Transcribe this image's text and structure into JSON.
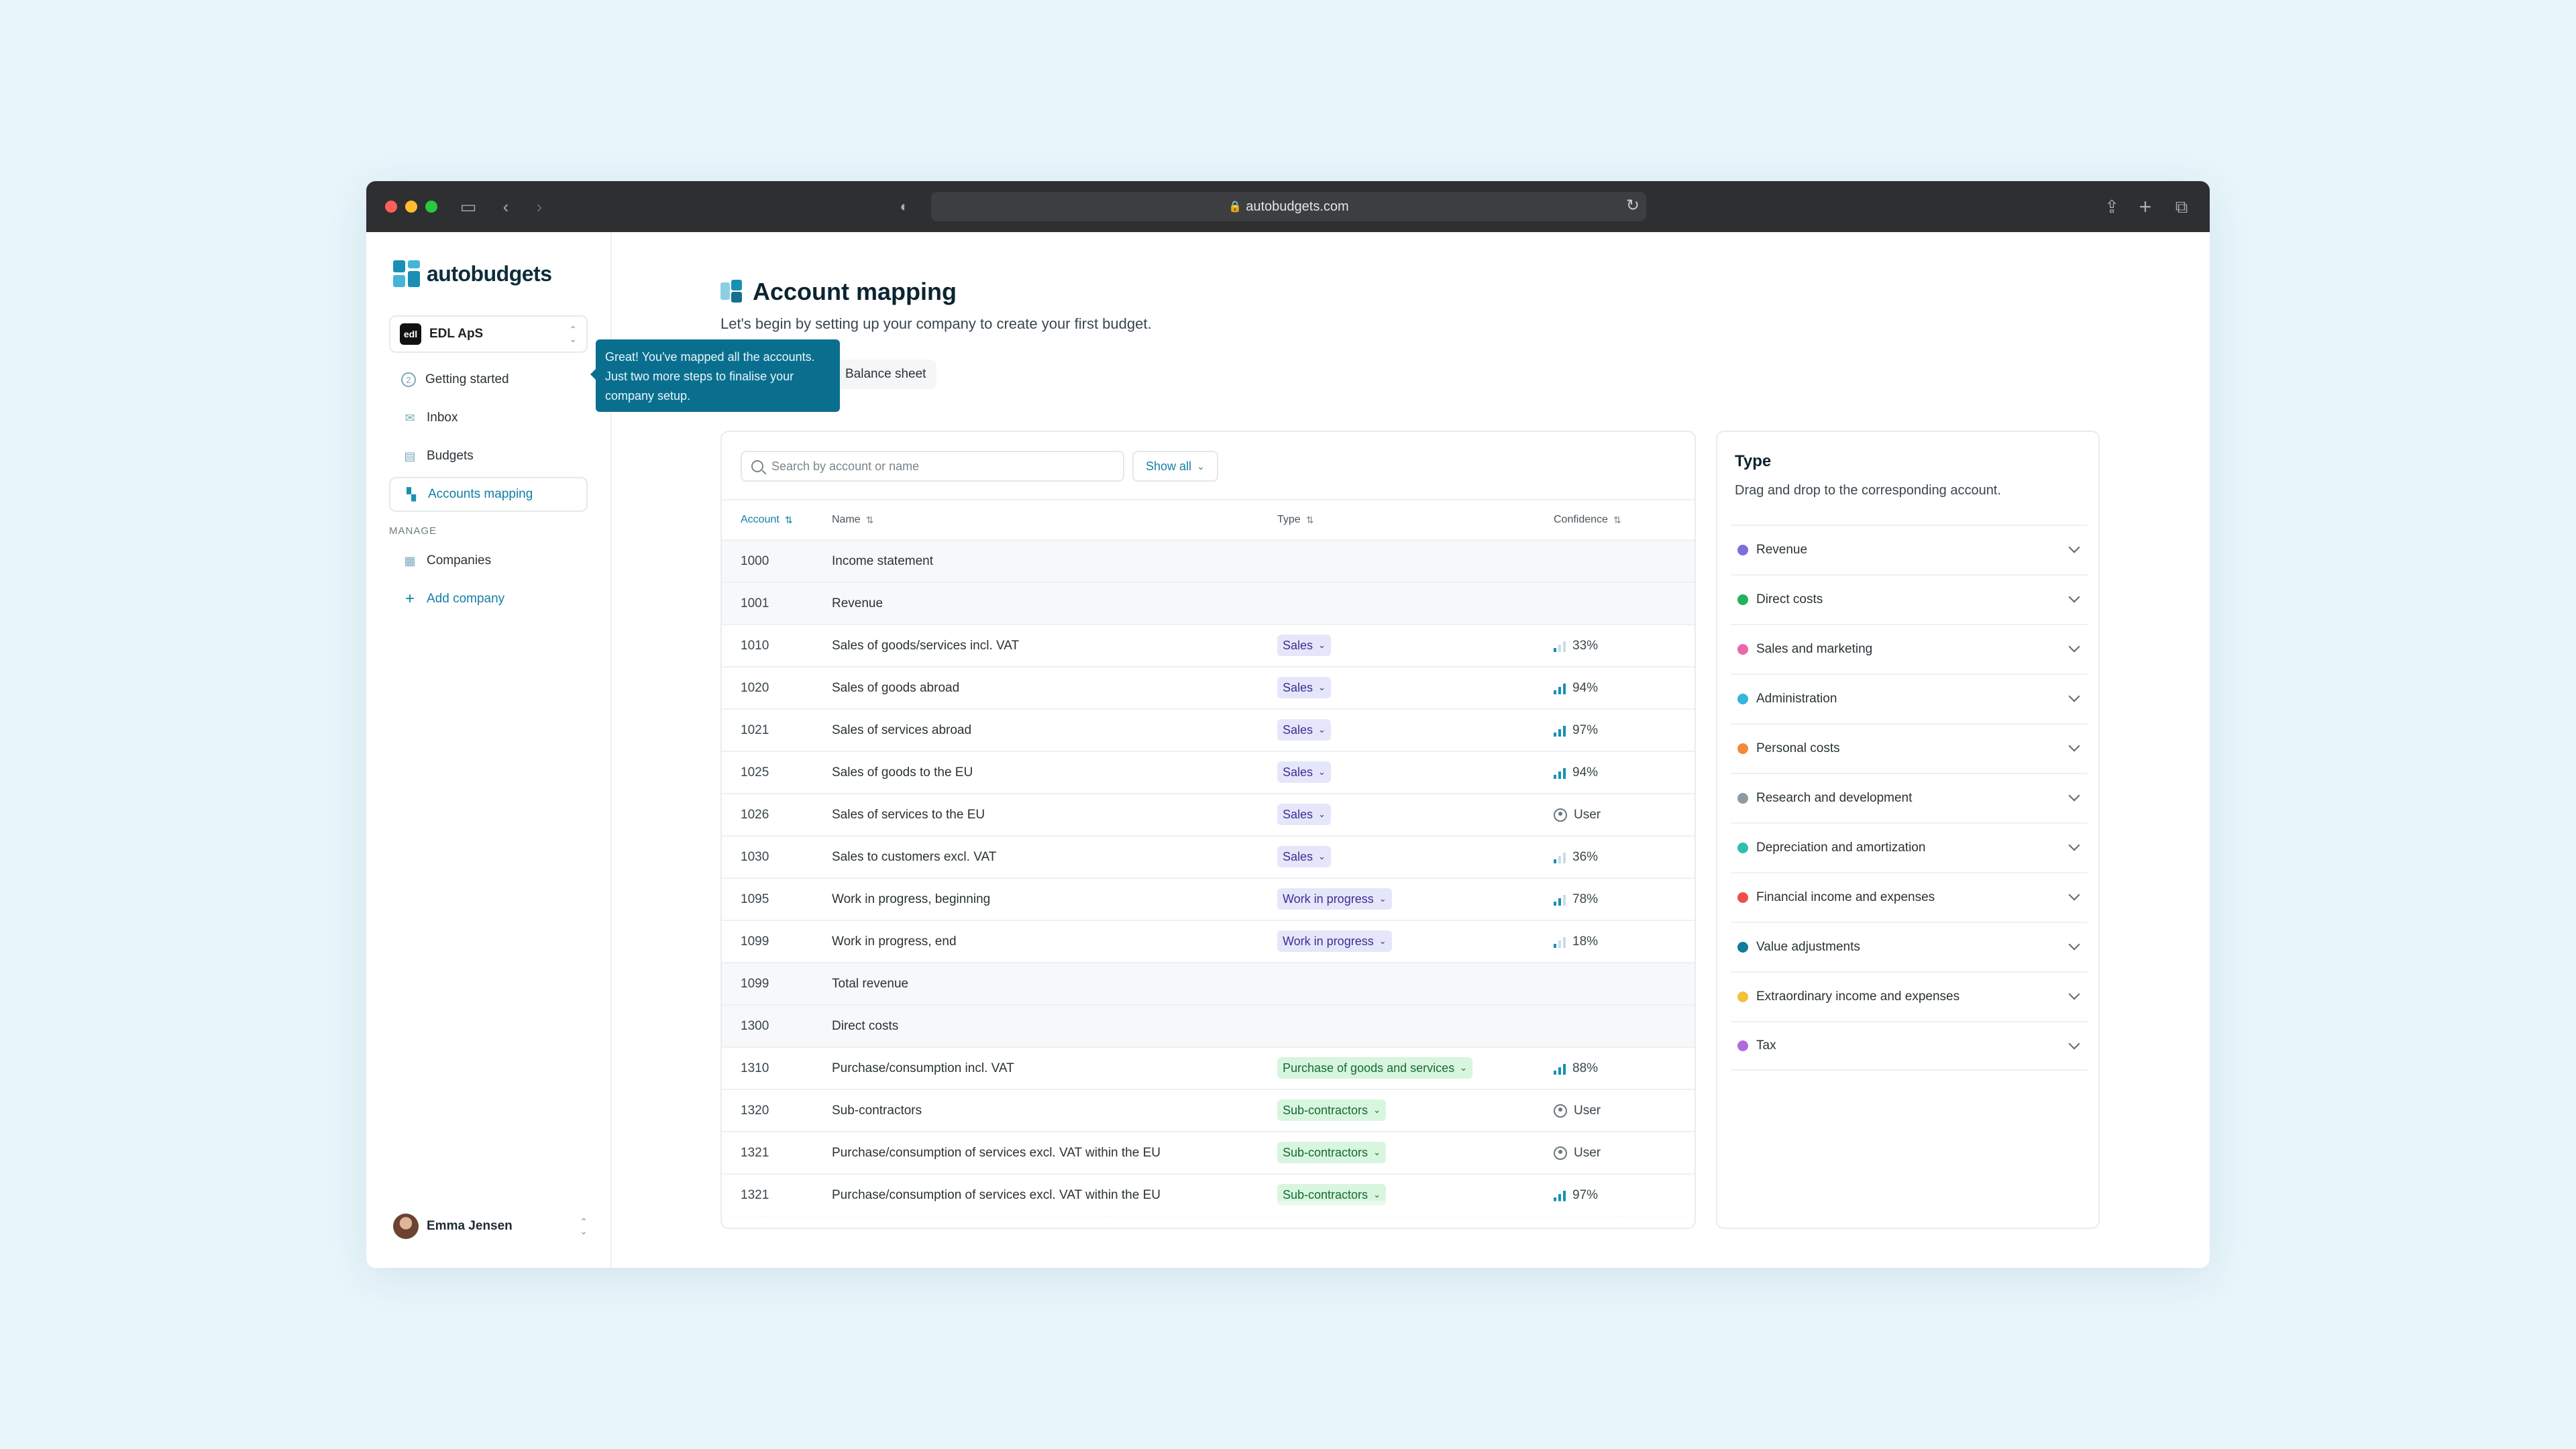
{
  "browser": {
    "url": "autobudgets.com",
    "traffic_lights": [
      "#ff5f57",
      "#febc2e",
      "#28c840"
    ]
  },
  "sidebar": {
    "brand": "autobudgets",
    "company": {
      "logo_text": "edl",
      "name": "EDL ApS"
    },
    "nav": [
      {
        "label": "Getting started",
        "icon": "step-2-icon"
      },
      {
        "label": "Inbox",
        "icon": "inbox-icon"
      },
      {
        "label": "Budgets",
        "icon": "budgets-icon"
      },
      {
        "label": "Accounts mapping",
        "icon": "mapping-icon",
        "active": true
      }
    ],
    "manage_label": "MANAGE",
    "manage": [
      {
        "label": "Companies",
        "icon": "companies-icon"
      },
      {
        "label": "Add company",
        "icon": "plus-icon"
      }
    ],
    "user": {
      "name": "Emma Jensen"
    }
  },
  "tooltip": {
    "text": "Great! You've mapped all the accounts. Just two more steps to finalise your company setup."
  },
  "main": {
    "title": "Account mapping",
    "subtitle": "Let's begin by setting up your company to create your first budget.",
    "tab": "Balance sheet",
    "search_placeholder": "Search by account or name",
    "filter_label": "Show all",
    "columns": {
      "account": "Account",
      "name": "Name",
      "type": "Type",
      "confidence": "Confidence"
    },
    "rows": [
      {
        "account": "1000",
        "name": "Income statement",
        "group": true
      },
      {
        "account": "1001",
        "name": "Revenue",
        "group": true
      },
      {
        "account": "1010",
        "name": "Sales of goods/services incl. VAT",
        "type": "Sales",
        "kind": "sales",
        "confidence": "33%",
        "level": 1
      },
      {
        "account": "1020",
        "name": "Sales of goods abroad",
        "type": "Sales",
        "kind": "sales",
        "confidence": "94%",
        "level": 3
      },
      {
        "account": "1021",
        "name": "Sales of services abroad",
        "type": "Sales",
        "kind": "sales",
        "confidence": "97%",
        "level": 3
      },
      {
        "account": "1025",
        "name": "Sales of goods to the EU",
        "type": "Sales",
        "kind": "sales",
        "confidence": "94%",
        "level": 3
      },
      {
        "account": "1026",
        "name": "Sales of services to the EU",
        "type": "Sales",
        "kind": "sales",
        "confidence": "User",
        "user": true
      },
      {
        "account": "1030",
        "name": "Sales to customers excl. VAT",
        "type": "Sales",
        "kind": "sales",
        "confidence": "36%",
        "level": 1
      },
      {
        "account": "1095",
        "name": "Work in progress, beginning",
        "type": "Work in progress",
        "kind": "wip",
        "confidence": "78%",
        "level": 2
      },
      {
        "account": "1099",
        "name": "Work in progress, end",
        "type": "Work in progress",
        "kind": "wip",
        "confidence": "18%",
        "level": 1
      },
      {
        "account": "1099",
        "name": "Total revenue",
        "group": true
      },
      {
        "account": "1300",
        "name": "Direct costs",
        "group": true
      },
      {
        "account": "1310",
        "name": "Purchase/consumption incl. VAT",
        "type": "Purchase of goods and services",
        "kind": "direct",
        "confidence": "88%",
        "level": 3
      },
      {
        "account": "1320",
        "name": "Sub-contractors",
        "type": "Sub-contractors",
        "kind": "direct",
        "confidence": "User",
        "user": true
      },
      {
        "account": "1321",
        "name": "Purchase/consumption of services excl. VAT within the EU",
        "type": "Sub-contractors",
        "kind": "direct",
        "confidence": "User",
        "user": true
      },
      {
        "account": "1321",
        "name": "Purchase/consumption of services excl. VAT within the EU",
        "type": "Sub-contractors",
        "kind": "direct",
        "confidence": "97%",
        "level": 3
      }
    ]
  },
  "type_panel": {
    "title": "Type",
    "description": "Drag and drop to the corresponding account.",
    "items": [
      {
        "label": "Revenue",
        "color": "#7b6fdc"
      },
      {
        "label": "Direct costs",
        "color": "#22b35a"
      },
      {
        "label": "Sales and marketing",
        "color": "#e86aa8"
      },
      {
        "label": "Administration",
        "color": "#37b6dd"
      },
      {
        "label": "Personal costs",
        "color": "#f28a3c"
      },
      {
        "label": "Research and development",
        "color": "#8f9aa2"
      },
      {
        "label": "Depreciation and amortization",
        "color": "#2fbfb0"
      },
      {
        "label": "Financial income and expenses",
        "color": "#ef4e4e"
      },
      {
        "label": "Value adjustments",
        "color": "#0e7d9a"
      },
      {
        "label": "Extraordinary income and expenses",
        "color": "#f2c23a"
      },
      {
        "label": "Tax",
        "color": "#b06adc"
      }
    ]
  }
}
